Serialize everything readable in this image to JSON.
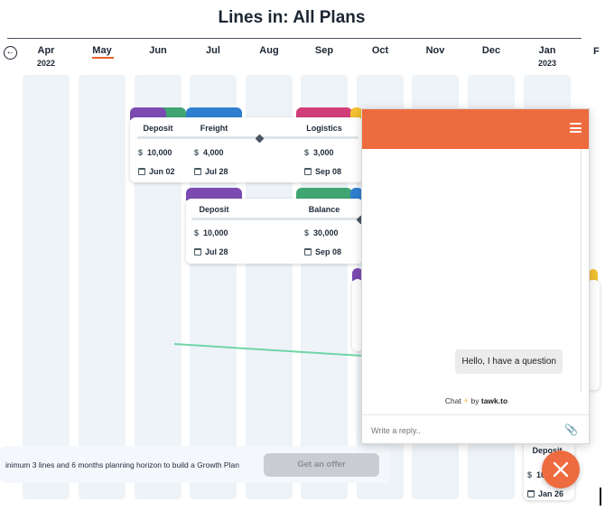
{
  "page": {
    "title": "Lines in: All Plans"
  },
  "timeline": {
    "months": [
      {
        "name": "Apr",
        "year": "2022"
      },
      {
        "name": "May",
        "year": ""
      },
      {
        "name": "Jun",
        "year": ""
      },
      {
        "name": "Jul",
        "year": ""
      },
      {
        "name": "Aug",
        "year": ""
      },
      {
        "name": "Sep",
        "year": ""
      },
      {
        "name": "Oct",
        "year": ""
      },
      {
        "name": "Nov",
        "year": ""
      },
      {
        "name": "Dec",
        "year": ""
      },
      {
        "name": "Jan",
        "year": "2023"
      }
    ],
    "selected_month": "May",
    "edge_label": "F"
  },
  "cards": [
    {
      "title": "Deposit",
      "amount": "10,000",
      "date": "Jun 02",
      "color": "#7b4bb2"
    },
    {
      "title": "Freight",
      "amount": "4,000",
      "date": "Jul 28",
      "color": "#2f7fd0"
    },
    {
      "title": "Logistics",
      "amount": "3,000",
      "date": "Sep 08",
      "color": "#d23e78"
    },
    {
      "title": "Deposit",
      "amount": "10,000",
      "date": "Jul 28",
      "color": "#7b4bb2"
    },
    {
      "title": "Balance",
      "amount": "30,000",
      "date": "Sep 08",
      "color": "#3fa673"
    },
    {
      "title": "Deposit",
      "amount": "10",
      "date": "Jan 26",
      "color": "#7b4bb2"
    }
  ],
  "currency_symbol": "$",
  "banner": {
    "text": "inimum 3 lines and 6 months planning horizon to build a Growth Plan",
    "button": "Get an offer"
  },
  "chat": {
    "message": "Hello, I have a question",
    "powered_prefix": "Chat",
    "powered_by": "by",
    "brand": "tawk.to",
    "reply_placeholder": "Write a reply..",
    "header_color": "#ee6b3f"
  },
  "colors": {
    "accent": "#ee6b3f",
    "column_bg": "#eef3f8",
    "green": "#3fa673",
    "purple": "#7b4bb2",
    "blue": "#2f7fd0",
    "pink": "#d23e78",
    "yellow": "#f2c230",
    "arrow": "#6fd6a6"
  }
}
